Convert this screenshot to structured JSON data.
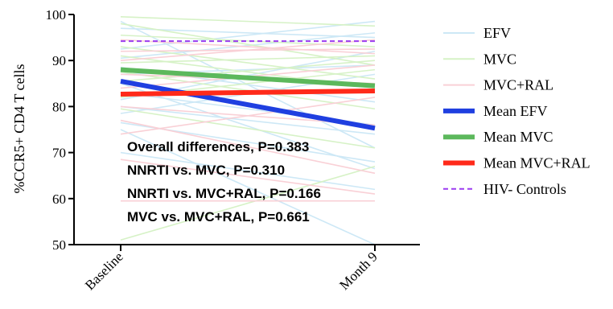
{
  "chart_data": {
    "type": "line",
    "x": [
      "Baseline",
      "Month 9"
    ],
    "ylabel": "%CCR5+ CD4 T cells",
    "ylim": [
      50,
      100
    ],
    "yticks": [
      50,
      60,
      70,
      80,
      90,
      100
    ],
    "grid": false,
    "legend_position": "right",
    "individual_series": [
      {
        "group": "EFV",
        "values": [
          98.5,
          71
        ]
      },
      {
        "group": "EFV",
        "values": [
          97,
          95
        ]
      },
      {
        "group": "EFV",
        "values": [
          92.5,
          98.5
        ]
      },
      {
        "group": "EFV",
        "values": [
          90.5,
          96
        ]
      },
      {
        "group": "EFV",
        "values": [
          88.5,
          81
        ]
      },
      {
        "group": "EFV",
        "values": [
          87,
          89
        ]
      },
      {
        "group": "EFV",
        "values": [
          85,
          66.5
        ]
      },
      {
        "group": "EFV",
        "values": [
          83,
          76
        ]
      },
      {
        "group": "EFV",
        "values": [
          81.5,
          92
        ]
      },
      {
        "group": "EFV",
        "values": [
          80,
          74
        ]
      },
      {
        "group": "EFV",
        "values": [
          78.5,
          87
        ]
      },
      {
        "group": "EFV",
        "values": [
          76.5,
          68
        ]
      },
      {
        "group": "EFV",
        "values": [
          75,
          50
        ]
      },
      {
        "group": "EFV",
        "values": [
          70,
          62
        ]
      },
      {
        "group": "MVC",
        "values": [
          99.5,
          97.5
        ]
      },
      {
        "group": "MVC",
        "values": [
          98,
          89
        ]
      },
      {
        "group": "MVC",
        "values": [
          95.5,
          93
        ]
      },
      {
        "group": "MVC",
        "values": [
          93,
          86
        ]
      },
      {
        "group": "MVC",
        "values": [
          91,
          84
        ]
      },
      {
        "group": "MVC",
        "values": [
          89.5,
          91
        ]
      },
      {
        "group": "MVC",
        "values": [
          87.5,
          79.5
        ]
      },
      {
        "group": "MVC",
        "values": [
          85.5,
          90
        ]
      },
      {
        "group": "MVC",
        "values": [
          82,
          88
        ]
      },
      {
        "group": "MVC",
        "values": [
          79.5,
          71
        ]
      },
      {
        "group": "MVC",
        "values": [
          51,
          67
        ]
      },
      {
        "group": "MVC+RAL",
        "values": [
          94.5,
          91.5
        ]
      },
      {
        "group": "MVC+RAL",
        "values": [
          92,
          92.5
        ]
      },
      {
        "group": "MVC+RAL",
        "values": [
          90,
          94.5
        ]
      },
      {
        "group": "MVC+RAL",
        "values": [
          87,
          85
        ]
      },
      {
        "group": "MVC+RAL",
        "values": [
          84,
          89
        ]
      },
      {
        "group": "MVC+RAL",
        "values": [
          80,
          76
        ]
      },
      {
        "group": "MVC+RAL",
        "values": [
          77,
          65.5
        ]
      },
      {
        "group": "MVC+RAL",
        "values": [
          74,
          82
        ]
      },
      {
        "group": "MVC+RAL",
        "values": [
          68.5,
          61
        ]
      },
      {
        "group": "MVC+RAL",
        "values": [
          59.5,
          59.5
        ]
      }
    ],
    "series": [
      {
        "name": "EFV",
        "color": "#cde8f6",
        "style": "thin",
        "legend": true
      },
      {
        "name": "MVC",
        "color": "#d6f2c6",
        "style": "thin",
        "legend": true
      },
      {
        "name": "MVC+RAL",
        "color": "#f9d0d6",
        "style": "thin",
        "legend": true
      },
      {
        "name": "Mean EFV",
        "color": "#1f3fe0",
        "style": "thick",
        "values": [
          85.5,
          75.3
        ]
      },
      {
        "name": "Mean MVC",
        "color": "#5cb85c",
        "style": "thick",
        "values": [
          88,
          84.5
        ]
      },
      {
        "name": "Mean MVC+RAL",
        "color": "#ff2a1a",
        "style": "thick",
        "values": [
          82.7,
          83.4
        ]
      },
      {
        "name": "HIV- Controls",
        "color": "#9b3cf0",
        "style": "dashed",
        "values": [
          94.2,
          94.2
        ]
      }
    ],
    "annotations": [
      "Overall differences, P=0.383",
      "NNRTI vs. MVC, P=0.310",
      "NNRTI vs. MVC+RAL, P=0.166",
      "MVC vs. MVC+RAL, P=0.661"
    ]
  }
}
